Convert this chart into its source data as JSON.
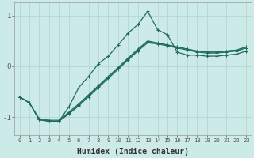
{
  "xlabel": "Humidex (Indice chaleur)",
  "bg_color": "#cceae8",
  "grid_color": "#b8d8d6",
  "line_color": "#1e6b5e",
  "xlim": [
    -0.5,
    23.5
  ],
  "ylim": [
    -1.35,
    1.25
  ],
  "yticks": [
    -1,
    0,
    1
  ],
  "xticks": [
    0,
    1,
    2,
    3,
    4,
    5,
    6,
    7,
    8,
    9,
    10,
    11,
    12,
    13,
    14,
    15,
    16,
    17,
    18,
    19,
    20,
    21,
    22,
    23
  ],
  "jagged_line": {
    "x": [
      0,
      1,
      2,
      3,
      4,
      5,
      6,
      7,
      8,
      9,
      10,
      11,
      12,
      13,
      14,
      15,
      16,
      17,
      18,
      19,
      20,
      21,
      22,
      23
    ],
    "y": [
      -0.6,
      -0.72,
      -1.05,
      -1.08,
      -1.08,
      -0.8,
      -0.42,
      -0.2,
      0.05,
      0.2,
      0.42,
      0.65,
      0.82,
      1.08,
      0.72,
      0.62,
      0.28,
      0.22,
      0.22,
      0.2,
      0.2,
      0.22,
      0.24,
      0.3
    ]
  },
  "straight_lines": [
    {
      "x": [
        0,
        1,
        2,
        3,
        4,
        5,
        6,
        7,
        8,
        9,
        10,
        11,
        12,
        13,
        14,
        15,
        16,
        17,
        18,
        19,
        20,
        21,
        22,
        23
      ],
      "y": [
        -0.6,
        -0.72,
        -1.05,
        -1.08,
        -1.08,
        -0.92,
        -0.76,
        -0.58,
        -0.4,
        -0.22,
        -0.04,
        0.14,
        0.32,
        0.48,
        0.45,
        0.42,
        0.38,
        0.34,
        0.3,
        0.28,
        0.28,
        0.3,
        0.32,
        0.38
      ]
    },
    {
      "x": [
        0,
        1,
        2,
        3,
        4,
        5,
        6,
        7,
        8,
        9,
        10,
        11,
        12,
        13,
        14,
        15,
        16,
        17,
        18,
        19,
        20,
        21,
        22,
        23
      ],
      "y": [
        -0.6,
        -0.72,
        -1.05,
        -1.08,
        -1.08,
        -0.94,
        -0.78,
        -0.6,
        -0.42,
        -0.24,
        -0.06,
        0.12,
        0.3,
        0.46,
        0.44,
        0.4,
        0.36,
        0.32,
        0.28,
        0.26,
        0.26,
        0.28,
        0.3,
        0.36
      ]
    },
    {
      "x": [
        0,
        1,
        2,
        3,
        4,
        5,
        6,
        7,
        8,
        9,
        10,
        11,
        12,
        13,
        14,
        15,
        16,
        17,
        18,
        19,
        20,
        21,
        22,
        23
      ],
      "y": [
        -0.6,
        -0.72,
        -1.03,
        -1.06,
        -1.06,
        -0.9,
        -0.74,
        -0.56,
        -0.38,
        -0.2,
        -0.02,
        0.16,
        0.34,
        0.5,
        0.46,
        0.42,
        0.38,
        0.34,
        0.3,
        0.28,
        0.28,
        0.3,
        0.32,
        0.38
      ]
    }
  ]
}
